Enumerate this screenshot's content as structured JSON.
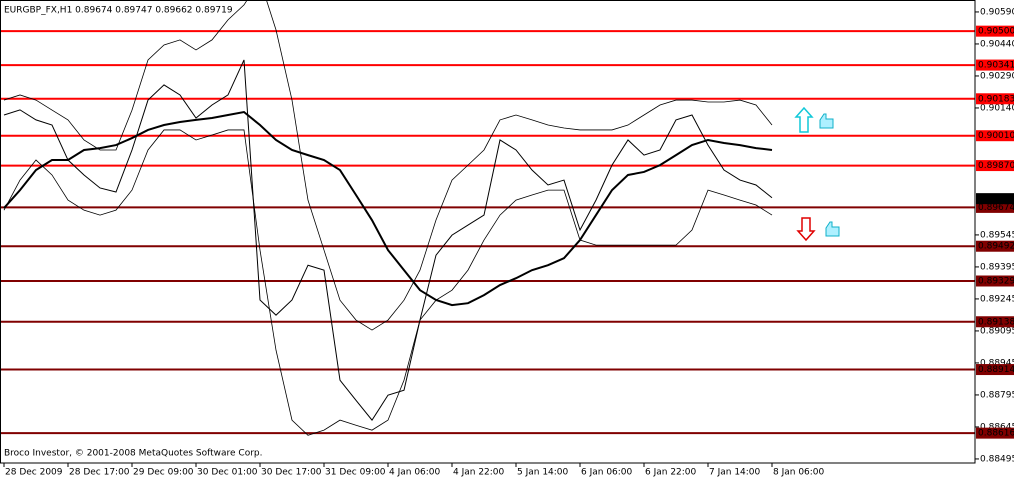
{
  "chart_data": {
    "type": "line",
    "title": "EURGBP_FX,H1  0.89674 0.89747 0.89662 0.89719",
    "footer": "Broco Investor, © 2001-2008 MetaQuotes Software Corp.",
    "categories": [
      "28 Dec 2009",
      null,
      null,
      null,
      "28 Dec 17:00",
      null,
      null,
      null,
      "29 Dec 09:00",
      null,
      null,
      null,
      "30 Dec 01:00",
      null,
      null,
      null,
      "30 Dec 17:00",
      null,
      null,
      null,
      "31 Dec 09:00",
      null,
      null,
      null,
      "4 Jan 06:00",
      null,
      null,
      null,
      "4 Jan 22:00",
      null,
      null,
      null,
      "5 Jan 14:00",
      null,
      null,
      null,
      "6 Jan 06:00",
      null,
      null,
      null,
      "6 Jan 22:00",
      null,
      null,
      null,
      "7 Jan 14:00",
      null,
      null,
      null,
      "8 Jan 06:00"
    ],
    "series": [
      {
        "color": "#000000",
        "width": 1,
        "values": [
          0.90107,
          0.90131,
          0.90084,
          0.9006,
          0.89896,
          0.89826,
          0.89765,
          0.89746,
          0.89943,
          0.90177,
          0.90248,
          0.90201,
          0.90093,
          0.90154,
          0.90201,
          0.90365,
          0.8924,
          0.89169,
          0.8924,
          0.89403,
          0.8938,
          0.88864,
          0.8877,
          0.88677,
          0.88794,
          0.88817,
          0.89146,
          0.8945,
          0.89544,
          0.89591,
          0.89638,
          0.8999,
          0.89943,
          0.89849,
          0.89779,
          0.89802,
          0.89568,
          0.89708,
          0.89872,
          0.8999,
          0.89919,
          0.89943,
          0.90084,
          0.90107,
          0.89966,
          0.89849,
          0.89802,
          0.89779,
          0.89719
        ]
      },
      {
        "color": "#000000",
        "width": 2,
        "values": [
          0.89671,
          0.89755,
          0.89849,
          0.89896,
          0.89896,
          0.89943,
          0.89952,
          0.89966,
          0.89999,
          0.90037,
          0.9006,
          0.90074,
          0.90084,
          0.90093,
          0.90107,
          0.90121,
          0.9006,
          0.8999,
          0.89943,
          0.89919,
          0.89896,
          0.89849,
          0.89732,
          0.89614,
          0.89474,
          0.8938,
          0.89286,
          0.8924,
          0.89216,
          0.89225,
          0.89263,
          0.8931,
          0.89342,
          0.8938,
          0.89403,
          0.89436,
          0.89521,
          0.89638,
          0.89755,
          0.89826,
          0.8984,
          0.89872,
          0.89919,
          0.89966,
          0.8999,
          0.89976,
          0.89966,
          0.89952,
          0.89943
        ]
      },
      {
        "color": "#000000",
        "width": 0.8,
        "values": [
          0.90177,
          0.90201,
          0.90177,
          0.9013,
          0.90084,
          0.8999,
          0.89943,
          0.89943,
          0.9013,
          0.90365,
          0.90435,
          0.90459,
          0.90412,
          0.90459,
          0.90553,
          0.90623,
          0.9074,
          0.90506,
          0.90177,
          0.89708,
          0.89474,
          0.89239,
          0.89146,
          0.89099,
          0.89146,
          0.89239,
          0.8938,
          0.89615,
          0.89802,
          0.89872,
          0.89943,
          0.90084,
          0.90107,
          0.90084,
          0.9006,
          0.90046,
          0.90037,
          0.90037,
          0.90037,
          0.9006,
          0.90107,
          0.90154,
          0.90177,
          0.90177,
          0.90168,
          0.90168,
          0.90177,
          0.90154,
          0.9006
        ]
      },
      {
        "color": "#000000",
        "width": 0.8,
        "values": [
          0.89661,
          0.89802,
          0.89896,
          0.89826,
          0.89708,
          0.89661,
          0.89638,
          0.89661,
          0.89755,
          0.89943,
          0.90037,
          0.90037,
          0.8999,
          0.90013,
          0.90037,
          0.90037,
          0.89474,
          0.89005,
          0.88677,
          0.88606,
          0.8863,
          0.88677,
          0.88653,
          0.8863,
          0.88677,
          0.88864,
          0.89146,
          0.89239,
          0.89286,
          0.8938,
          0.89521,
          0.89638,
          0.89708,
          0.89732,
          0.89755,
          0.89755,
          0.89521,
          0.89497,
          0.89497,
          0.89497,
          0.89497,
          0.89497,
          0.89497,
          0.89568,
          0.89755,
          0.89732,
          0.89708,
          0.89685,
          0.89638
        ]
      }
    ],
    "levels": [
      {
        "value": 0.905,
        "label": "0.90500",
        "color": "#ff0000"
      },
      {
        "value": 0.90341,
        "color": "#ff0000"
      },
      {
        "value": 0.90183,
        "color": "#ff0000"
      },
      {
        "value": 0.9001,
        "label": "0.90010",
        "color": "#ff0000"
      },
      {
        "value": 0.8987,
        "label": "0.89870",
        "color": "#ff0000"
      },
      {
        "value": 0.89674,
        "color": "#800000"
      },
      {
        "value": 0.89492,
        "color": "#800000"
      },
      {
        "value": 0.89329,
        "color": "#800000"
      },
      {
        "value": 0.89138,
        "color": "#800000"
      },
      {
        "value": 0.88914,
        "color": "#800000"
      },
      {
        "value": 0.88616,
        "color": "#800000"
      }
    ],
    "last_price": 0.89715,
    "ylim": [
      0.88476,
      0.90646
    ],
    "yticks": [
      {
        "value": 0.9059,
        "label": "0.90590"
      },
      {
        "value": 0.9044,
        "label": "0.90440"
      },
      {
        "value": 0.9029,
        "label": "0.90290"
      },
      {
        "value": 0.9014,
        "label": "0.90140"
      },
      0.89545,
      0.89395,
      0.89245,
      0.89095,
      0.88945,
      0.88795,
      0.88645,
      0.88495
    ]
  }
}
